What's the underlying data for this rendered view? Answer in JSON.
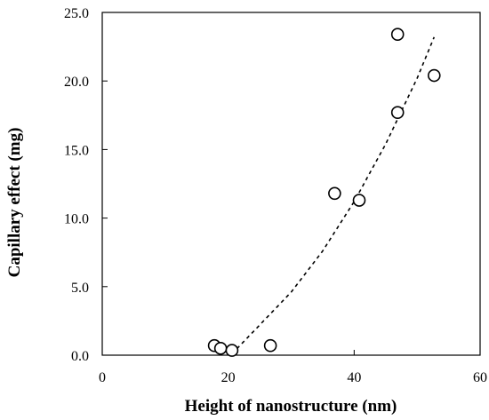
{
  "chart_data": {
    "type": "scatter",
    "title": "",
    "xlabel": "Height of nanostructure (nm)",
    "ylabel": "Capillary effect (mg)",
    "xlim": [
      0,
      60
    ],
    "ylim": [
      0.0,
      25.0
    ],
    "x_ticks": [
      0,
      20,
      40,
      60
    ],
    "x_tick_labels": [
      "0",
      "20",
      "40",
      "60"
    ],
    "y_ticks": [
      0,
      5,
      10,
      15,
      20,
      25
    ],
    "y_tick_labels": [
      "0.0",
      "5.0",
      "10.0",
      "15.0",
      "20.0",
      "25.0"
    ],
    "grid": false,
    "legend": "none",
    "series": [
      {
        "marker": "open-circle",
        "points": [
          {
            "x": 17.8,
            "y": 0.7
          },
          {
            "x": 18.8,
            "y": 0.5
          },
          {
            "x": 20.6,
            "y": 0.35
          },
          {
            "x": 26.7,
            "y": 0.7
          },
          {
            "x": 36.9,
            "y": 11.8
          },
          {
            "x": 40.8,
            "y": 11.3
          },
          {
            "x": 46.9,
            "y": 23.4
          },
          {
            "x": 46.9,
            "y": 17.7
          },
          {
            "x": 52.7,
            "y": 20.4
          }
        ]
      }
    ],
    "trendline": {
      "style": "dashed",
      "points": [
        {
          "x": 20.6,
          "y": 0.1
        },
        {
          "x": 25,
          "y": 2.2
        },
        {
          "x": 30,
          "y": 4.6
        },
        {
          "x": 35,
          "y": 7.6
        },
        {
          "x": 40,
          "y": 11.2
        },
        {
          "x": 45,
          "y": 15.4
        },
        {
          "x": 50,
          "y": 20.2
        },
        {
          "x": 52.7,
          "y": 23.2
        }
      ]
    }
  }
}
